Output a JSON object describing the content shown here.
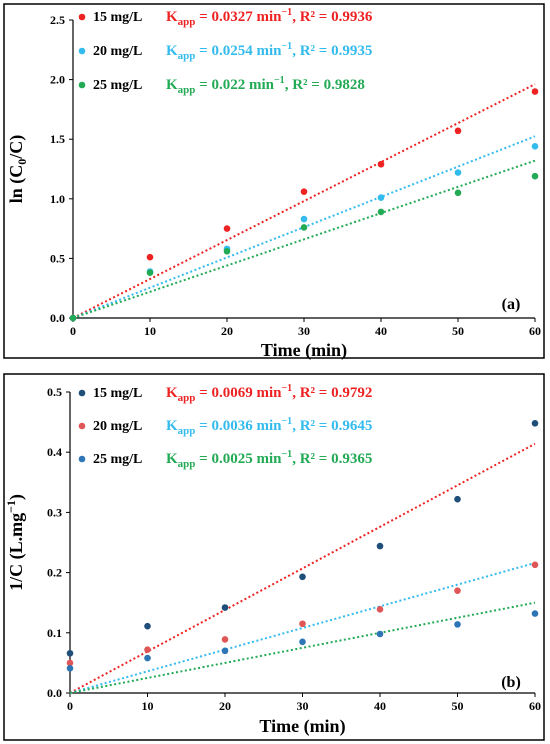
{
  "chart_data": [
    {
      "type": "scatter",
      "panel_label": "(a)",
      "xlabel": "Time (min)",
      "ylabel_main": "ln (C",
      "ylabel_sub": "0",
      "ylabel_tail": "/C)",
      "xlim": [
        0,
        60
      ],
      "ylim": [
        0,
        2.5
      ],
      "xticks": [
        0,
        10,
        20,
        30,
        40,
        50,
        60
      ],
      "yticks": [
        0.0,
        0.5,
        1.0,
        1.5,
        2.0,
        2.5
      ],
      "ytick_labels": [
        "0.0",
        "0.5",
        "1.0",
        "1.5",
        "2.0",
        "2.5"
      ],
      "series": [
        {
          "name": "15 mg/L",
          "color": "#ee2222",
          "x": [
            0,
            10,
            20,
            30,
            40,
            50,
            60
          ],
          "y": [
            0.0,
            0.51,
            0.75,
            1.06,
            1.29,
            1.57,
            1.9
          ],
          "fit_slope": 0.0327,
          "fit_k": "0.0327",
          "fit_r2": "0.9936",
          "fit_color": "#ee2222"
        },
        {
          "name": "20 mg/L",
          "color": "#33bbee",
          "x": [
            0,
            10,
            20,
            30,
            40,
            50,
            60
          ],
          "y": [
            0.0,
            0.39,
            0.58,
            0.83,
            1.01,
            1.22,
            1.44
          ],
          "fit_slope": 0.0254,
          "fit_k": "0.0254",
          "fit_r2": "0.9935",
          "fit_color": "#33bbee"
        },
        {
          "name": "25 mg/L",
          "color": "#22aa55",
          "x": [
            0,
            10,
            20,
            30,
            40,
            50,
            60
          ],
          "y": [
            0.0,
            0.38,
            0.56,
            0.76,
            0.89,
            1.05,
            1.19
          ],
          "fit_slope": 0.022,
          "fit_k": "0.022",
          "fit_r2": "0.9828",
          "fit_color": "#22aa55"
        }
      ]
    },
    {
      "type": "scatter",
      "panel_label": "(b)",
      "xlabel": "Time (min)",
      "ylabel_main": "1/C (L.mg",
      "ylabel_sup": "−1",
      "ylabel_tail": ")",
      "xlim": [
        0,
        60
      ],
      "ylim": [
        0,
        0.5
      ],
      "xticks": [
        0,
        10,
        20,
        30,
        40,
        50,
        60
      ],
      "yticks": [
        0.0,
        0.1,
        0.2,
        0.3,
        0.4,
        0.5
      ],
      "ytick_labels": [
        "0.0",
        "0.1",
        "0.2",
        "0.3",
        "0.4",
        "0.5"
      ],
      "series": [
        {
          "name": "15 mg/L",
          "color": "#1f4e79",
          "x": [
            0,
            10,
            20,
            30,
            40,
            50,
            60
          ],
          "y": [
            0.066,
            0.111,
            0.142,
            0.193,
            0.244,
            0.322,
            0.448
          ],
          "fit_slope": 0.0069,
          "fit_k": "0.0069",
          "fit_r2": "0.9792",
          "fit_color": "#ee2222"
        },
        {
          "name": "20 mg/L",
          "color": "#e05555",
          "x": [
            0,
            10,
            20,
            30,
            40,
            50,
            60
          ],
          "y": [
            0.05,
            0.072,
            0.089,
            0.115,
            0.139,
            0.17,
            0.213
          ],
          "fit_slope": 0.0036,
          "fit_k": "0.0036",
          "fit_r2": "0.9645",
          "fit_color": "#33bbee"
        },
        {
          "name": "25 mg/L",
          "color": "#2e75b6",
          "x": [
            0,
            10,
            20,
            30,
            40,
            50,
            60
          ],
          "y": [
            0.041,
            0.058,
            0.07,
            0.085,
            0.098,
            0.114,
            0.132
          ],
          "fit_slope": 0.0025,
          "fit_k": "0.0025",
          "fit_r2": "0.9365",
          "fit_color": "#22aa55"
        }
      ]
    }
  ],
  "fit_text": {
    "k_symbol": "K",
    "k_sub": "app",
    "equals": " = ",
    "unit_main": " min",
    "unit_sup": "−1",
    "r2_prefix": ", R² = "
  }
}
